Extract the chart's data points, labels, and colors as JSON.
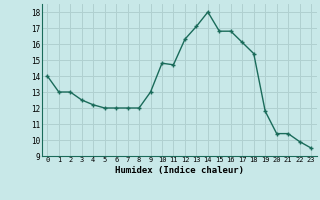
{
  "x": [
    0,
    1,
    2,
    3,
    4,
    5,
    6,
    7,
    8,
    9,
    10,
    11,
    12,
    13,
    14,
    15,
    16,
    17,
    18,
    19,
    20,
    21,
    22,
    23
  ],
  "y": [
    14,
    13,
    13,
    12.5,
    12.2,
    12,
    12,
    12,
    12,
    13,
    14.8,
    14.7,
    16.3,
    17.1,
    18,
    16.8,
    16.8,
    16.1,
    15.4,
    11.8,
    10.4,
    10.4,
    9.9,
    9.5
  ],
  "line_color": "#1a6b5a",
  "bg_color": "#c8e8e8",
  "grid_color": "#b0d0d0",
  "xlabel": "Humidex (Indice chaleur)",
  "ylim": [
    9,
    18.5
  ],
  "xlim": [
    -0.5,
    23.5
  ],
  "yticks": [
    9,
    10,
    11,
    12,
    13,
    14,
    15,
    16,
    17,
    18
  ],
  "xticks": [
    0,
    1,
    2,
    3,
    4,
    5,
    6,
    7,
    8,
    9,
    10,
    11,
    12,
    13,
    14,
    15,
    16,
    17,
    18,
    19,
    20,
    21,
    22,
    23
  ]
}
